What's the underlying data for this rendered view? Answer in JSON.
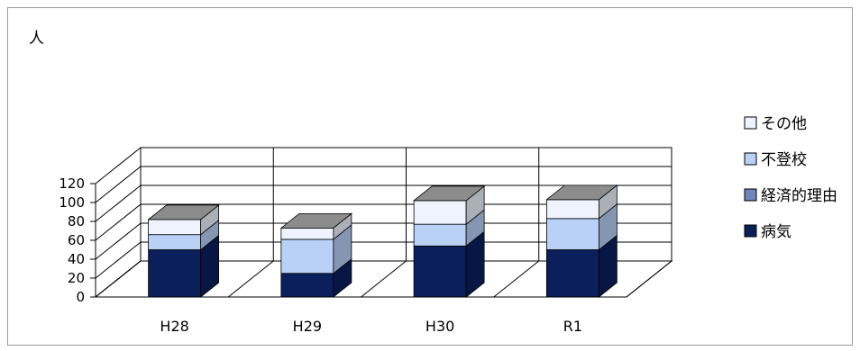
{
  "chart_data": {
    "type": "bar",
    "stacked": true,
    "style": "3d",
    "ylabel": "人",
    "ylim": [
      0,
      120
    ],
    "yticks": [
      0,
      20,
      40,
      60,
      80,
      100,
      120
    ],
    "categories": [
      "H28",
      "H29",
      "H30",
      "R1"
    ],
    "series": [
      {
        "name": "病気",
        "values": [
          50,
          25,
          54,
          50
        ],
        "color": "#0a1f5c"
      },
      {
        "name": "経済的理由",
        "values": [
          0,
          0,
          0,
          0
        ],
        "color": "#6f86b8"
      },
      {
        "name": "不登校",
        "values": [
          16,
          36,
          23,
          33
        ],
        "color": "#b9d1f7"
      },
      {
        "name": "その他",
        "values": [
          16,
          12,
          25,
          20
        ],
        "color": "#eef3fd"
      }
    ],
    "legend_position": "right",
    "legend_order": [
      "その他",
      "不登校",
      "経済的理由",
      "病気"
    ],
    "grid": true
  }
}
